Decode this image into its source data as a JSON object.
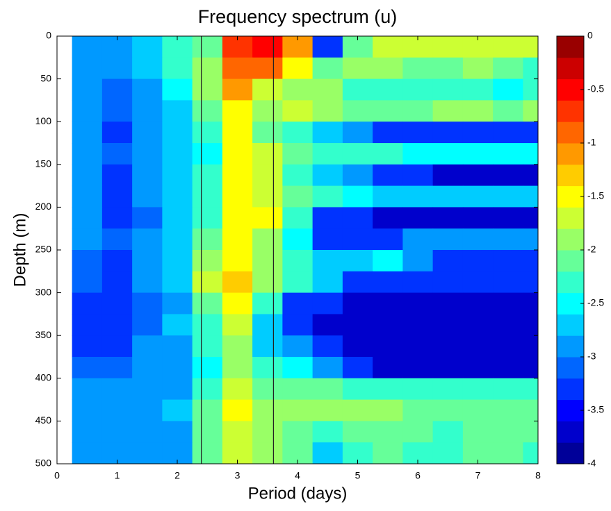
{
  "chart_data": {
    "type": "heatmap",
    "title": "Frequency spectrum (u)",
    "x_label": "Period (days)",
    "y_label": "Depth (m)",
    "xbins": [
      0.25,
      0.75,
      1.25,
      1.75,
      2.25,
      2.75,
      3.25,
      3.75,
      4.25,
      4.75,
      5.25,
      5.75,
      6.25,
      6.75,
      7.25,
      7.75,
      8
    ],
    "ybins": [
      0,
      25,
      50,
      75,
      100,
      125,
      150,
      175,
      200,
      225,
      250,
      275,
      300,
      325,
      350,
      375,
      400,
      425,
      450,
      475,
      500
    ],
    "z": [
      [
        -3,
        -3,
        -2.8,
        -2.4,
        -2.2,
        -0.7,
        -0.6,
        -1.2,
        -3.4,
        -2.2,
        -1.7,
        -1.8,
        -1.8,
        -1.8,
        -1.8,
        -1.8
      ],
      [
        -3,
        -3,
        -2.8,
        -2.4,
        -2.0,
        -1.0,
        -0.9,
        -1.6,
        -2.2,
        -2.0,
        -1.9,
        -2.2,
        -2.2,
        -2.0,
        -2.2,
        -2.4
      ],
      [
        -3,
        -3.1,
        -2.9,
        -2.6,
        -2.0,
        -1.2,
        -1.8,
        -2.0,
        -2.0,
        -2.4,
        -2.4,
        -2.3,
        -2.4,
        -2.4,
        -2.5,
        -2.4
      ],
      [
        -3,
        -3.1,
        -3,
        -2.8,
        -2.2,
        -1.6,
        -2.0,
        -1.8,
        -2.0,
        -2.2,
        -2.2,
        -2.1,
        -2.0,
        -2.0,
        -2.2,
        -2.0
      ],
      [
        -3,
        -3.2,
        -3,
        -2.8,
        -2.4,
        -1.6,
        -2.2,
        -2.4,
        -2.8,
        -3.0,
        -3.3,
        -3.2,
        -3.3,
        -3.4,
        -3.3,
        -3.2
      ],
      [
        -3,
        -3.1,
        -3,
        -2.7,
        -2.6,
        -1.6,
        -1.8,
        -2.2,
        -2.4,
        -2.4,
        -2.4,
        -2.6,
        -2.6,
        -2.6,
        -2.6,
        -2.6
      ],
      [
        -3,
        -3.2,
        -3,
        -2.8,
        -2.4,
        -1.5,
        -1.8,
        -2.4,
        -2.8,
        -3.0,
        -3.2,
        -3.4,
        -3.6,
        -3.6,
        -3.6,
        -3.6
      ],
      [
        -3,
        -3.2,
        -3,
        -2.8,
        -2.4,
        -1.5,
        -1.8,
        -2.2,
        -2.4,
        -2.6,
        -2.8,
        -2.8,
        -2.8,
        -2.8,
        -2.8,
        -2.8
      ],
      [
        -3,
        -3.2,
        -3.1,
        -2.8,
        -2.4,
        -1.6,
        -1.6,
        -2.4,
        -3.2,
        -3.4,
        -3.6,
        -3.6,
        -3.6,
        -3.6,
        -3.6,
        -3.6
      ],
      [
        -3,
        -3.1,
        -3,
        -2.8,
        -2.2,
        -1.6,
        -2.0,
        -2.6,
        -3.4,
        -3.4,
        -3.2,
        -3.0,
        -3.0,
        -3.0,
        -3.0,
        -3.0
      ],
      [
        -3.1,
        -3.2,
        -3,
        -2.8,
        -2.0,
        -1.5,
        -1.9,
        -2.4,
        -2.8,
        -2.8,
        -2.6,
        -3.0,
        -3.2,
        -3.2,
        -3.2,
        -3.2
      ],
      [
        -3.1,
        -3.2,
        -3,
        -2.8,
        -1.8,
        -1.4,
        -2.0,
        -2.4,
        -2.8,
        -3.2,
        -3.2,
        -3.4,
        -3.4,
        -3.4,
        -3.4,
        -3.2
      ],
      [
        -3.2,
        -3.2,
        -3.1,
        -3.0,
        -2.2,
        -1.6,
        -2.4,
        -3.2,
        -3.4,
        -3.6,
        -3.6,
        -3.7,
        -3.7,
        -3.7,
        -3.7,
        -3.6
      ],
      [
        -3.2,
        -3.3,
        -3.1,
        -2.8,
        -2.4,
        -1.8,
        -2.8,
        -3.4,
        -3.6,
        -3.6,
        -3.6,
        -3.6,
        -3.6,
        -3.6,
        -3.6,
        -3.6
      ],
      [
        -3.2,
        -3.2,
        -3,
        -2.9,
        -2.4,
        -2.0,
        -2.8,
        -3.0,
        -3.2,
        -3.6,
        -3.7,
        -3.7,
        -3.7,
        -3.7,
        -3.7,
        -3.7
      ],
      [
        -3.1,
        -3.1,
        -3,
        -3.0,
        -2.6,
        -2.0,
        -2.4,
        -2.6,
        -3.0,
        -3.4,
        -3.6,
        -3.6,
        -3.6,
        -3.6,
        -3.6,
        -3.6
      ],
      [
        -3,
        -3,
        -3,
        -3.0,
        -2.4,
        -1.8,
        -2.2,
        -2.2,
        -2.2,
        -2.4,
        -2.4,
        -2.4,
        -2.4,
        -2.4,
        -2.4,
        -2.4
      ],
      [
        -3,
        -3,
        -2.9,
        -2.8,
        -2.2,
        -1.6,
        -2.0,
        -1.9,
        -2.0,
        -2.0,
        -2.0,
        -2.2,
        -2.2,
        -2.2,
        -2.2,
        -2.2
      ],
      [
        -3,
        -3,
        -2.9,
        -2.9,
        -2.2,
        -1.8,
        -2.0,
        -2.2,
        -2.4,
        -2.2,
        -2.2,
        -2.2,
        -2.3,
        -2.2,
        -2.2,
        -2.2
      ],
      [
        -3,
        -3,
        -2.9,
        -3.0,
        -2.2,
        -1.8,
        -2.0,
        -2.2,
        -2.8,
        -2.4,
        -2.2,
        -2.3,
        -2.4,
        -2.2,
        -2.2,
        -2.3
      ]
    ],
    "xlim": [
      0,
      8
    ],
    "xticks": [
      0,
      1,
      2,
      3,
      4,
      5,
      6,
      7,
      8
    ],
    "ylim": [
      0,
      500
    ],
    "yticks": [
      0,
      50,
      100,
      150,
      200,
      250,
      300,
      350,
      400,
      450,
      500
    ],
    "y_reversed": true,
    "vlines": [
      2.4,
      3.6
    ],
    "vline_color": "#222222",
    "colormap": "jet",
    "colorbar": {
      "clim": [
        -4,
        0
      ],
      "levels": 20,
      "ticks": [
        0,
        -0.5,
        -1,
        -1.5,
        -2,
        -2.5,
        -3,
        -3.5,
        -4
      ]
    }
  }
}
